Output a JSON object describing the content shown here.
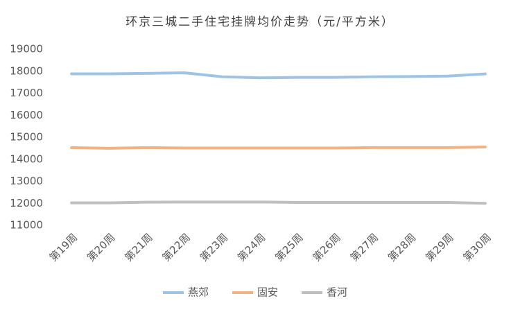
{
  "chart_data": {
    "type": "line",
    "title": "环京三城二手住宅挂牌均价走势（元/平方米）",
    "categories": [
      "第19周",
      "第20周",
      "第21周",
      "第22周",
      "第23周",
      "第24周",
      "第25周",
      "第26周",
      "第27周",
      "第28周",
      "第29周",
      "第30周"
    ],
    "series": [
      {
        "name": "燕郊",
        "color": "#9dc3e6",
        "values": [
          17880,
          17880,
          17900,
          17930,
          17750,
          17700,
          17720,
          17720,
          17750,
          17760,
          17780,
          17880
        ]
      },
      {
        "name": "固安",
        "color": "#f4b183",
        "values": [
          14530,
          14500,
          14530,
          14510,
          14510,
          14510,
          14510,
          14510,
          14530,
          14530,
          14530,
          14560
        ]
      },
      {
        "name": "香河",
        "color": "#bfbfbf",
        "values": [
          12020,
          12020,
          12050,
          12060,
          12060,
          12060,
          12040,
          12040,
          12040,
          12040,
          12040,
          12000
        ]
      }
    ],
    "ylim": [
      11000,
      19000
    ],
    "yticks": [
      11000,
      12000,
      13000,
      14000,
      15000,
      16000,
      17000,
      18000,
      19000
    ],
    "grid": false,
    "legend": "bottom"
  }
}
